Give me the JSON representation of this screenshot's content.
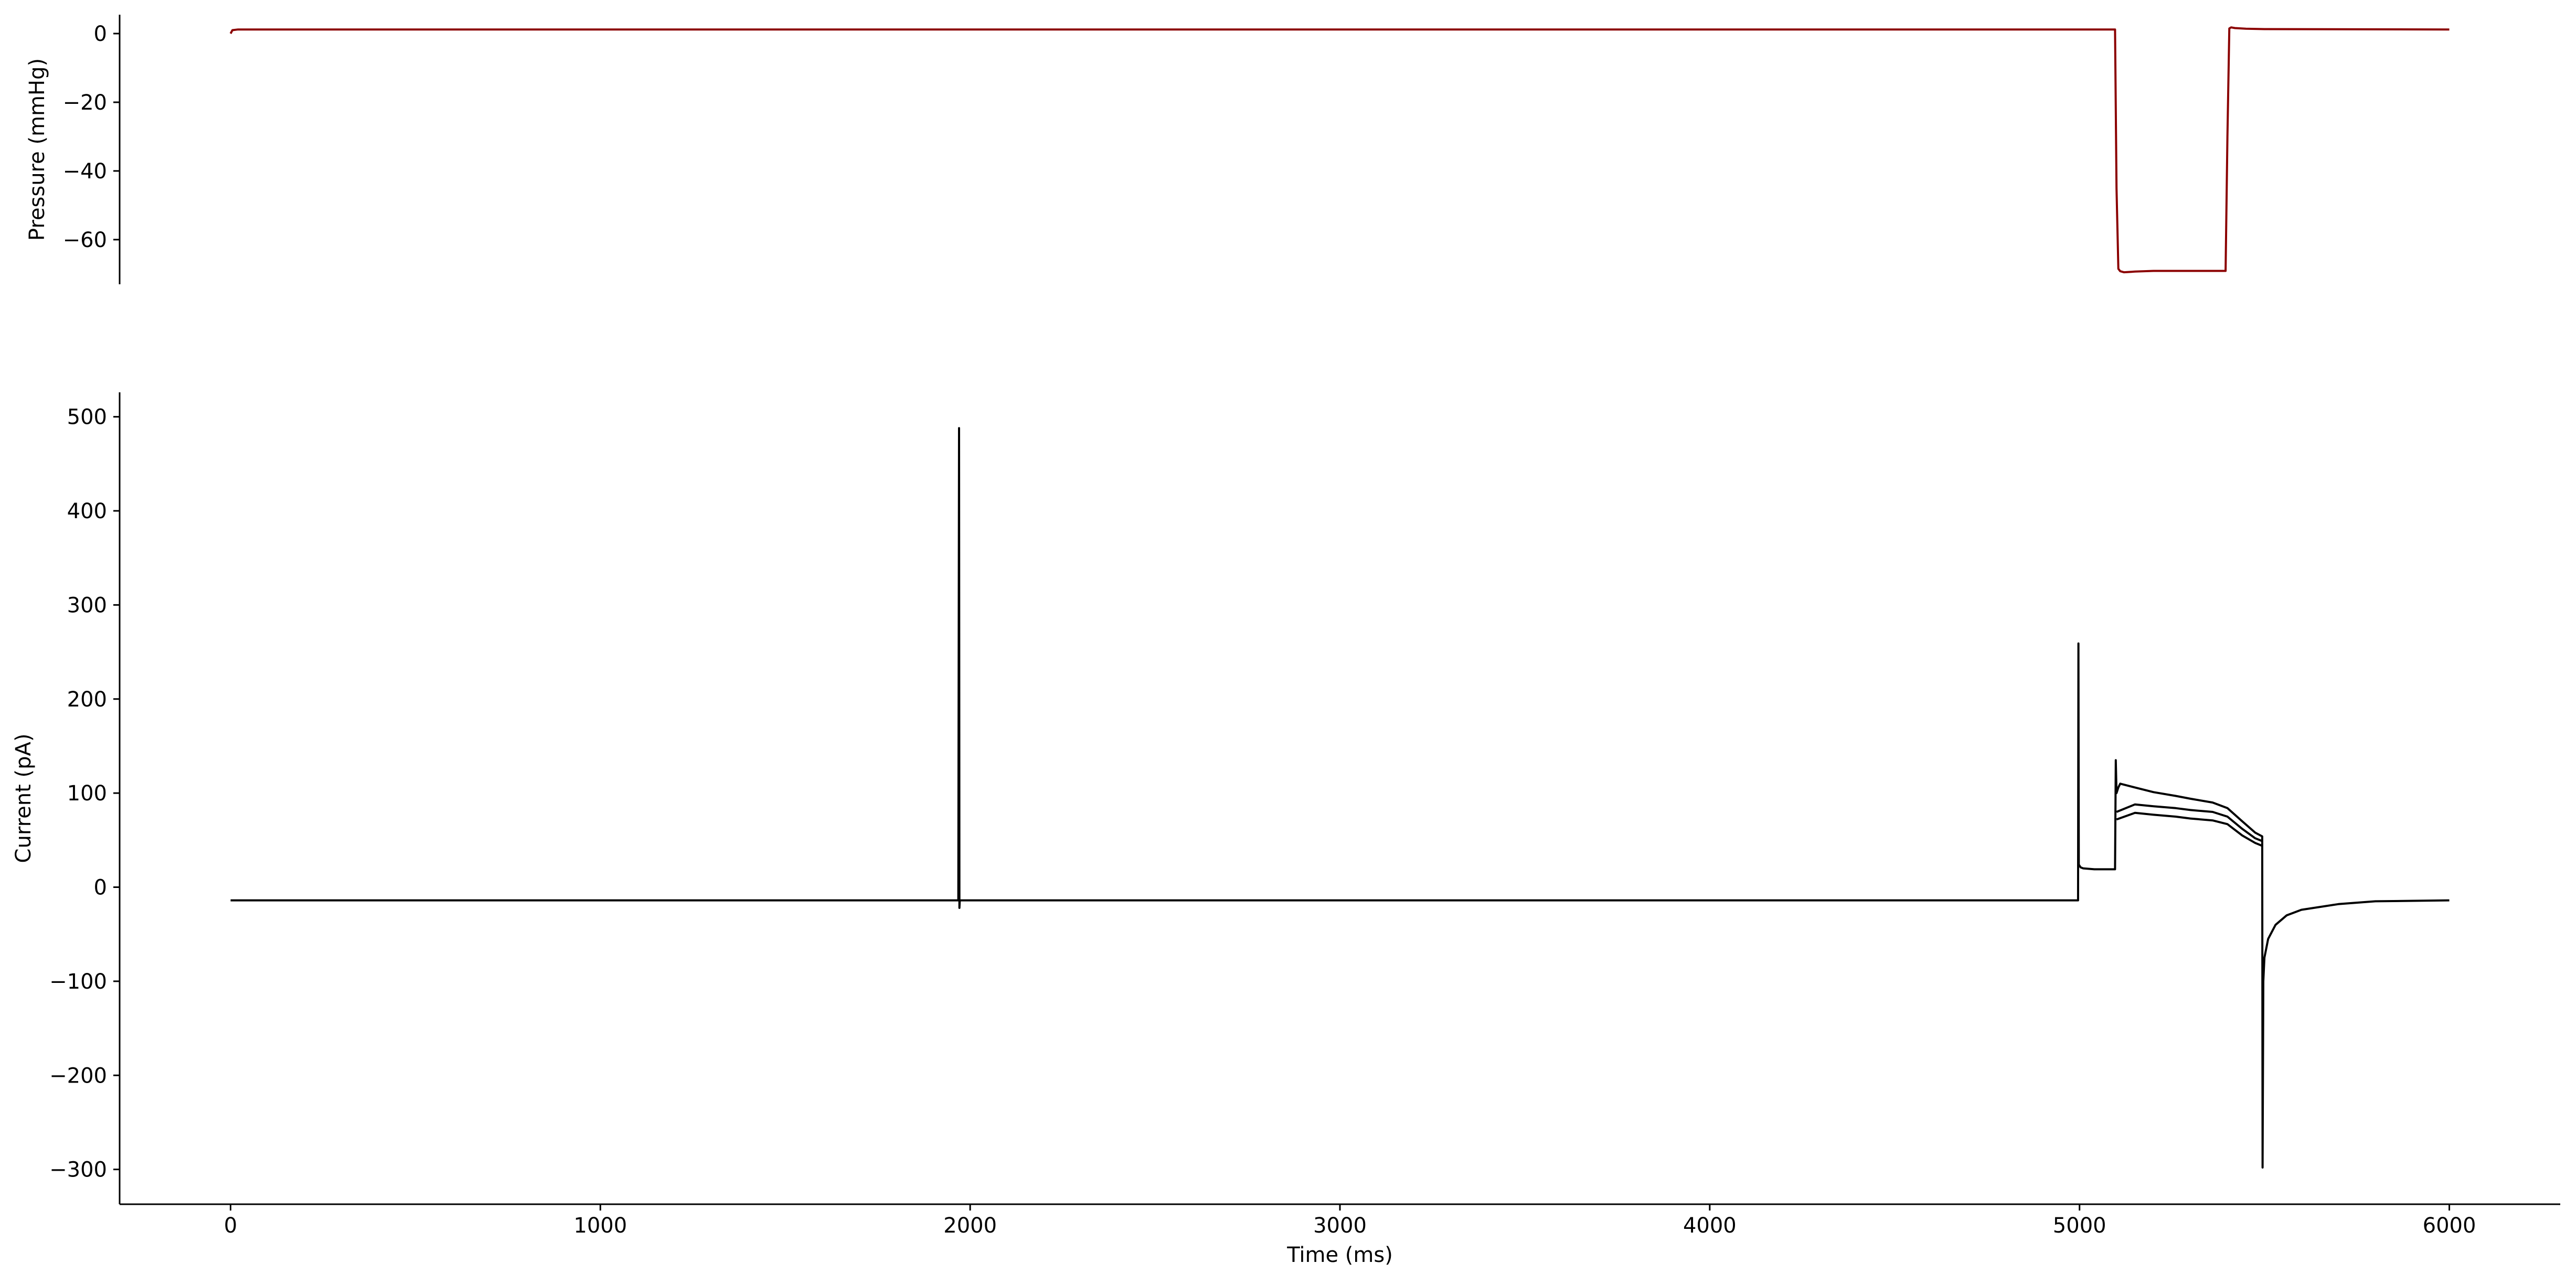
{
  "chart_data": [
    {
      "type": "line",
      "title": "",
      "xlabel": "",
      "ylabel": "Pressure (mmHg)",
      "xlim": [
        -300,
        6300
      ],
      "ylim": [
        -73,
        5.5
      ],
      "xticks": [],
      "yticks": [
        0,
        -20,
        -40,
        -60
      ],
      "ytick_labels": [
        "0",
        "−20",
        "−40",
        "−60"
      ],
      "grid": false,
      "series": [
        {
          "color": "#8b0000",
          "x": [
            0,
            5,
            20,
            1000,
            2000,
            3000,
            4000,
            5000,
            5090,
            5096,
            5100,
            5105,
            5110,
            5120,
            5150,
            5200,
            5300,
            5395,
            5400,
            5405,
            5410,
            5420,
            5450,
            5500,
            6000
          ],
          "values": [
            0,
            1,
            1.2,
            1.2,
            1.2,
            1.2,
            1.2,
            1.2,
            1.2,
            1.2,
            -45,
            -68.5,
            -69.2,
            -69.5,
            -69.3,
            -69.1,
            -69.1,
            -69.1,
            -30,
            1.5,
            1.8,
            1.6,
            1.4,
            1.3,
            1.2
          ]
        }
      ]
    },
    {
      "type": "line",
      "title": "",
      "xlabel": "Time (ms)",
      "ylabel": "Current (pA)",
      "xlim": [
        -300,
        6300
      ],
      "ylim": [
        -337,
        526
      ],
      "xticks": [
        0,
        1000,
        2000,
        3000,
        4000,
        5000,
        6000
      ],
      "yticks": [
        500,
        400,
        300,
        200,
        100,
        0,
        -100,
        -200,
        -300
      ],
      "ytick_labels": [
        "500",
        "400",
        "300",
        "200",
        "100",
        "0",
        "−100",
        "−200",
        "−300"
      ],
      "grid": false,
      "series": [
        {
          "color": "#000000",
          "x": [
            0,
            1000,
            1968,
            1970,
            1971,
            1972,
            1975,
            3000,
            4000,
            4996,
            4997,
            4998,
            5003,
            5010,
            5040,
            5080,
            5096,
            5098,
            5100,
            5105,
            5110,
            5150,
            5200,
            5260,
            5300,
            5360,
            5400,
            5440,
            5475,
            5494,
            5495,
            5497,
            5500,
            5510,
            5530,
            5560,
            5600,
            5700,
            5800,
            6000
          ],
          "values": [
            -14,
            -14,
            -14,
            488,
            -22,
            -14,
            -14,
            -14,
            -14,
            -14,
            259,
            24,
            21,
            20,
            19,
            19,
            19,
            135,
            100,
            106,
            110,
            106,
            101,
            97,
            94,
            90,
            84,
            70,
            58,
            54,
            -298,
            -100,
            -75,
            -55,
            -40,
            -30,
            -24,
            -18,
            -15,
            -14
          ]
        },
        {
          "color": "#000000",
          "x": [
            5100,
            5150,
            5200,
            5260,
            5300,
            5360,
            5400,
            5440,
            5475,
            5494
          ],
          "values": [
            80,
            88,
            86,
            84,
            82,
            80,
            75,
            62,
            52,
            49
          ]
        },
        {
          "color": "#000000",
          "x": [
            5100,
            5150,
            5200,
            5260,
            5300,
            5360,
            5400,
            5440,
            5475,
            5494
          ],
          "values": [
            72,
            79,
            77,
            75,
            73,
            71,
            67,
            55,
            47,
            44
          ]
        }
      ]
    }
  ]
}
